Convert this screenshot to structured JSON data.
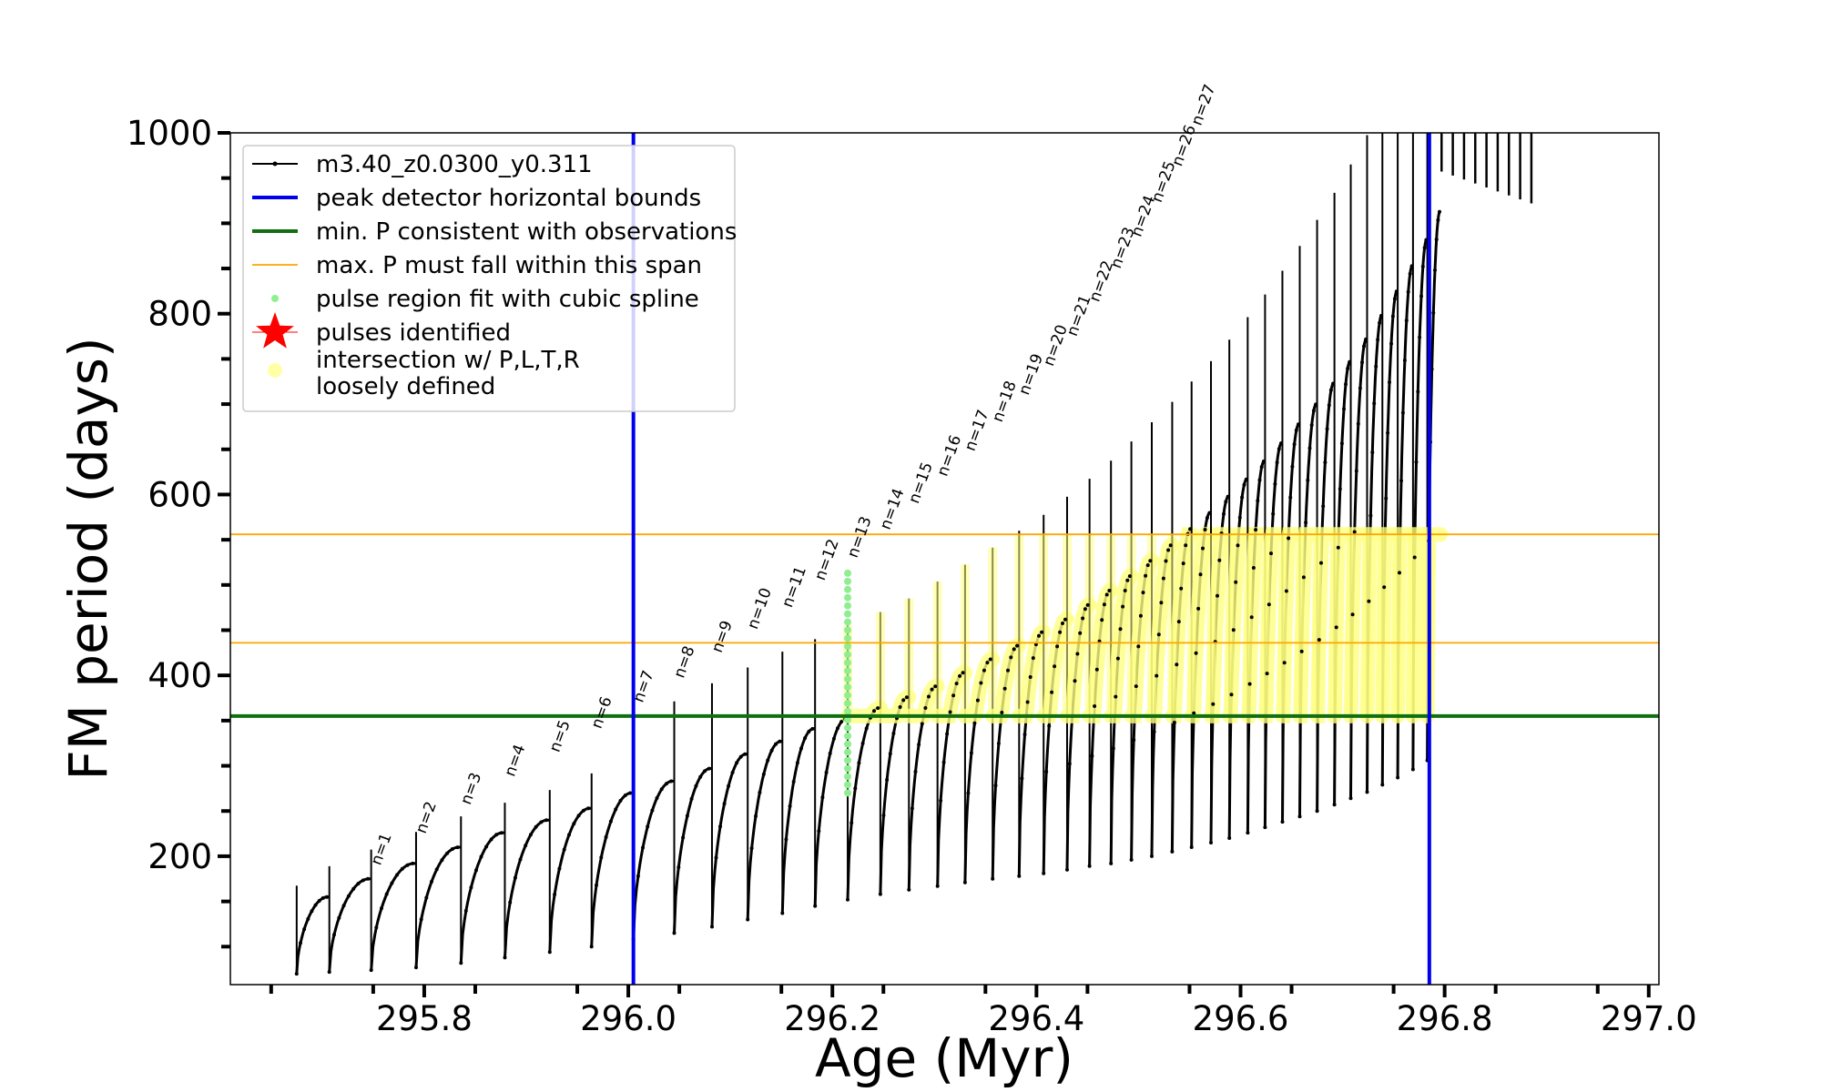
{
  "chart_data": {
    "type": "line",
    "title": "",
    "xlabel": "Age (Myr)",
    "ylabel": "FM period (days)",
    "xlim": [
      295.61,
      297.01
    ],
    "ylim": [
      58,
      1000
    ],
    "x_ticks": [
      295.8,
      296.0,
      296.2,
      296.4,
      296.6,
      296.8,
      297.0
    ],
    "x_tick_labels": [
      "295.8",
      "296.0",
      "296.2",
      "296.4",
      "296.6",
      "296.8",
      "297.0"
    ],
    "y_ticks": [
      200,
      400,
      600,
      800,
      1000
    ],
    "y_tick_labels": [
      "200",
      "400",
      "600",
      "800",
      "1000"
    ],
    "grid": false,
    "legend_position": "upper-left",
    "legend": [
      {
        "label": "m3.40_z0.0300_y0.311",
        "style": "line-with-dots",
        "color": "#000000"
      },
      {
        "label": "peak detector horizontal bounds",
        "style": "line",
        "color": "#0000ee"
      },
      {
        "label": "min. P consistent with observations",
        "style": "line",
        "color": "#107010"
      },
      {
        "label": "max. P must fall within this span",
        "style": "thin-line",
        "color": "#ffa500"
      },
      {
        "label": "pulse region fit with cubic spline",
        "style": "dot",
        "color": "#90ee90"
      },
      {
        "label": "pulses identified",
        "style": "star",
        "color": "#ff0000"
      },
      {
        "label": "intersection w/ P,L,T,R\nloosely defined",
        "style": "circle",
        "color": "#ffff80"
      }
    ],
    "vertical_lines": [
      {
        "series": "peak detector horizontal bounds",
        "x": 296.005,
        "color": "#0000ee"
      },
      {
        "series": "peak detector horizontal bounds",
        "x": 296.785,
        "color": "#0000ee"
      }
    ],
    "horizontal_lines": [
      {
        "series": "min. P consistent with observations",
        "y": 355,
        "color": "#107010"
      },
      {
        "series": "max. P must fall within this span",
        "y": 436,
        "color": "#ffa500"
      },
      {
        "series": "max. P must fall within this span",
        "y": 556,
        "color": "#ffa500"
      }
    ],
    "period_track": {
      "series": "m3.40_z0.0300_y0.311",
      "cycles": [
        {
          "x_start": 295.675,
          "x_end": 295.707,
          "y_min": 70,
          "y_max": 155
        },
        {
          "x_start": 295.707,
          "x_end": 295.748,
          "y_min": 72,
          "y_max": 175
        },
        {
          "x_start": 295.748,
          "x_end": 295.792,
          "y_min": 74,
          "y_max": 192
        },
        {
          "x_start": 295.792,
          "x_end": 295.836,
          "y_min": 77,
          "y_max": 210
        },
        {
          "x_start": 295.836,
          "x_end": 295.879,
          "y_min": 82,
          "y_max": 226
        },
        {
          "x_start": 295.879,
          "x_end": 295.923,
          "y_min": 88,
          "y_max": 240
        },
        {
          "x_start": 295.923,
          "x_end": 295.964,
          "y_min": 94,
          "y_max": 253
        },
        {
          "x_start": 295.964,
          "x_end": 296.005,
          "y_min": 100,
          "y_max": 270
        },
        {
          "x_start": 296.005,
          "x_end": 296.045,
          "y_min": 108,
          "y_max": 283
        },
        {
          "x_start": 296.045,
          "x_end": 296.082,
          "y_min": 115,
          "y_max": 297
        },
        {
          "x_start": 296.082,
          "x_end": 296.117,
          "y_min": 122,
          "y_max": 313
        },
        {
          "x_start": 296.117,
          "x_end": 296.151,
          "y_min": 130,
          "y_max": 327
        },
        {
          "x_start": 296.151,
          "x_end": 296.183,
          "y_min": 137,
          "y_max": 341
        },
        {
          "x_start": 296.183,
          "x_end": 296.215,
          "y_min": 145,
          "y_max": 352
        },
        {
          "x_start": 296.215,
          "x_end": 296.247,
          "y_min": 152,
          "y_max": 364
        },
        {
          "x_start": 296.247,
          "x_end": 296.275,
          "y_min": 158,
          "y_max": 376
        },
        {
          "x_start": 296.275,
          "x_end": 296.303,
          "y_min": 163,
          "y_max": 388
        },
        {
          "x_start": 296.303,
          "x_end": 296.33,
          "y_min": 167,
          "y_max": 403
        },
        {
          "x_start": 296.33,
          "x_end": 296.357,
          "y_min": 171,
          "y_max": 418
        },
        {
          "x_start": 296.357,
          "x_end": 296.383,
          "y_min": 175,
          "y_max": 433
        },
        {
          "x_start": 296.383,
          "x_end": 296.407,
          "y_min": 178,
          "y_max": 448
        },
        {
          "x_start": 296.407,
          "x_end": 296.43,
          "y_min": 181,
          "y_max": 462
        },
        {
          "x_start": 296.43,
          "x_end": 296.452,
          "y_min": 185,
          "y_max": 478
        },
        {
          "x_start": 296.452,
          "x_end": 296.473,
          "y_min": 189,
          "y_max": 494
        },
        {
          "x_start": 296.473,
          "x_end": 296.493,
          "y_min": 192,
          "y_max": 510
        },
        {
          "x_start": 296.493,
          "x_end": 296.513,
          "y_min": 196,
          "y_max": 527
        },
        {
          "x_start": 296.513,
          "x_end": 296.533,
          "y_min": 200,
          "y_max": 544
        },
        {
          "x_start": 296.533,
          "x_end": 296.552,
          "y_min": 205,
          "y_max": 562
        },
        {
          "x_start": 296.552,
          "x_end": 296.571,
          "y_min": 210,
          "y_max": 580
        },
        {
          "x_start": 296.571,
          "x_end": 296.589,
          "y_min": 215,
          "y_max": 598
        },
        {
          "x_start": 296.589,
          "x_end": 296.607,
          "y_min": 220,
          "y_max": 617
        },
        {
          "x_start": 296.607,
          "x_end": 296.624,
          "y_min": 226,
          "y_max": 637
        },
        {
          "x_start": 296.624,
          "x_end": 296.641,
          "y_min": 232,
          "y_max": 657
        },
        {
          "x_start": 296.641,
          "x_end": 296.658,
          "y_min": 238,
          "y_max": 678
        },
        {
          "x_start": 296.658,
          "x_end": 296.675,
          "y_min": 244,
          "y_max": 700
        },
        {
          "x_start": 296.675,
          "x_end": 296.692,
          "y_min": 250,
          "y_max": 723
        },
        {
          "x_start": 296.692,
          "x_end": 296.708,
          "y_min": 257,
          "y_max": 747
        },
        {
          "x_start": 296.708,
          "x_end": 296.724,
          "y_min": 264,
          "y_max": 772
        },
        {
          "x_start": 296.724,
          "x_end": 296.739,
          "y_min": 271,
          "y_max": 798
        },
        {
          "x_start": 296.739,
          "x_end": 296.754,
          "y_min": 279,
          "y_max": 825
        },
        {
          "x_start": 296.754,
          "x_end": 296.769,
          "y_min": 287,
          "y_max": 853
        },
        {
          "x_start": 296.769,
          "x_end": 296.783,
          "y_min": 296,
          "y_max": 882
        },
        {
          "x_start": 296.783,
          "x_end": 296.796,
          "y_min": 306,
          "y_max": 913
        }
      ],
      "upper_region_note": "beyond 296.78 the track rises above 1000 days"
    },
    "pulse_labels": [
      {
        "text": "n=1",
        "x": 295.748,
        "y": 185
      },
      {
        "text": "n=2",
        "x": 295.792,
        "y": 220
      },
      {
        "text": "n=3",
        "x": 295.836,
        "y": 252
      },
      {
        "text": "n=4",
        "x": 295.879,
        "y": 283
      },
      {
        "text": "n=5",
        "x": 295.923,
        "y": 310
      },
      {
        "text": "n=6",
        "x": 295.964,
        "y": 336
      },
      {
        "text": "n=7",
        "x": 296.005,
        "y": 365
      },
      {
        "text": "n=8",
        "x": 296.045,
        "y": 392
      },
      {
        "text": "n=9",
        "x": 296.082,
        "y": 420
      },
      {
        "text": "n=10",
        "x": 296.117,
        "y": 446
      },
      {
        "text": "n=11",
        "x": 296.151,
        "y": 470
      },
      {
        "text": "n=12",
        "x": 296.183,
        "y": 500
      },
      {
        "text": "n=13",
        "x": 296.215,
        "y": 525
      },
      {
        "text": "n=14",
        "x": 296.247,
        "y": 556
      },
      {
        "text": "n=15",
        "x": 296.275,
        "y": 585
      },
      {
        "text": "n=16",
        "x": 296.303,
        "y": 615
      },
      {
        "text": "n=17",
        "x": 296.33,
        "y": 643
      },
      {
        "text": "n=18",
        "x": 296.357,
        "y": 675
      },
      {
        "text": "n=19",
        "x": 296.383,
        "y": 705
      },
      {
        "text": "n=20",
        "x": 296.407,
        "y": 737
      },
      {
        "text": "n=21",
        "x": 296.43,
        "y": 770
      },
      {
        "text": "n=22",
        "x": 296.452,
        "y": 808
      },
      {
        "text": "n=23",
        "x": 296.473,
        "y": 845
      },
      {
        "text": "n=24",
        "x": 296.493,
        "y": 880
      },
      {
        "text": "n=25",
        "x": 296.513,
        "y": 918
      },
      {
        "text": "n=26",
        "x": 296.533,
        "y": 958
      },
      {
        "text": "n=27",
        "x": 296.552,
        "y": 1003
      }
    ],
    "spline_fit_region": {
      "series": "pulse region fit with cubic spline",
      "x": 296.215,
      "y_range": [
        270,
        520
      ]
    },
    "intersection_region": {
      "series": "intersection w/ P,L,T,R\nloosely defined",
      "x_range": [
        296.005,
        296.785
      ],
      "y_range": [
        355,
        556
      ]
    }
  }
}
